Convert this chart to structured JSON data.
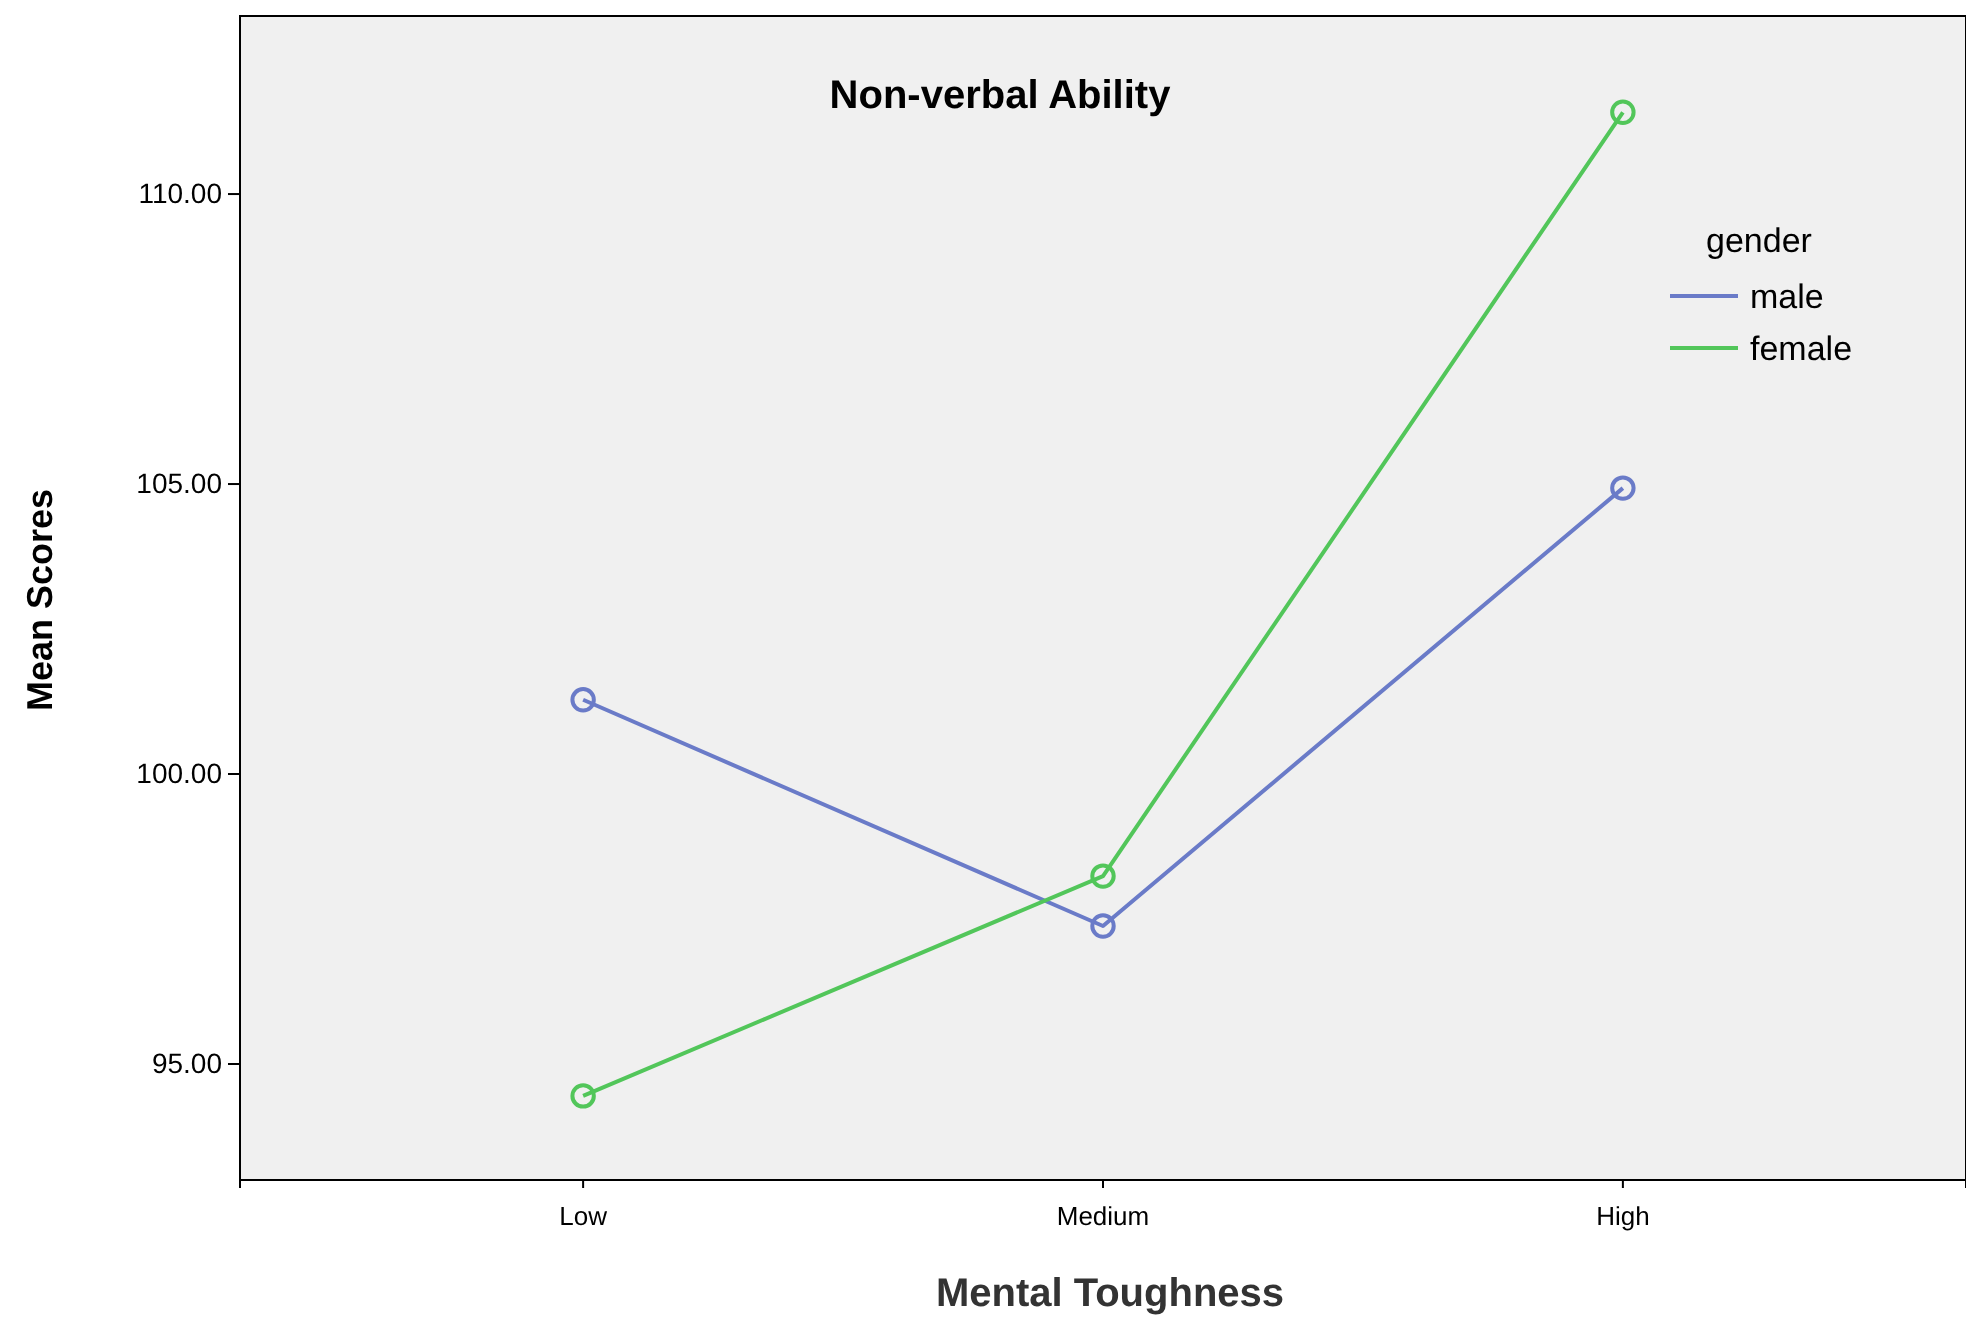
{
  "chart_data": {
    "type": "line",
    "title": "Non-verbal Ability",
    "xlabel": "Mental Toughness",
    "ylabel": "Mean Scores",
    "legend_title": "gender",
    "categories": [
      "Low",
      "Medium",
      "High"
    ],
    "series": [
      {
        "name": "male",
        "color": "#6a7bc8",
        "values": [
          101.28,
          97.38,
          104.93
        ]
      },
      {
        "name": "female",
        "color": "#52c65a",
        "values": [
          94.45,
          98.24,
          111.41
        ]
      }
    ],
    "ylim": [
      93.0,
      113.07
    ],
    "yticks": [
      {
        "value": 95,
        "label": "95.00"
      },
      {
        "value": 100,
        "label": "100.00"
      },
      {
        "value": 105,
        "label": "105.00"
      },
      {
        "value": 110,
        "label": "110.00"
      }
    ],
    "grid": false,
    "legend": "top right",
    "marker": "circle",
    "line_style": "solid"
  }
}
